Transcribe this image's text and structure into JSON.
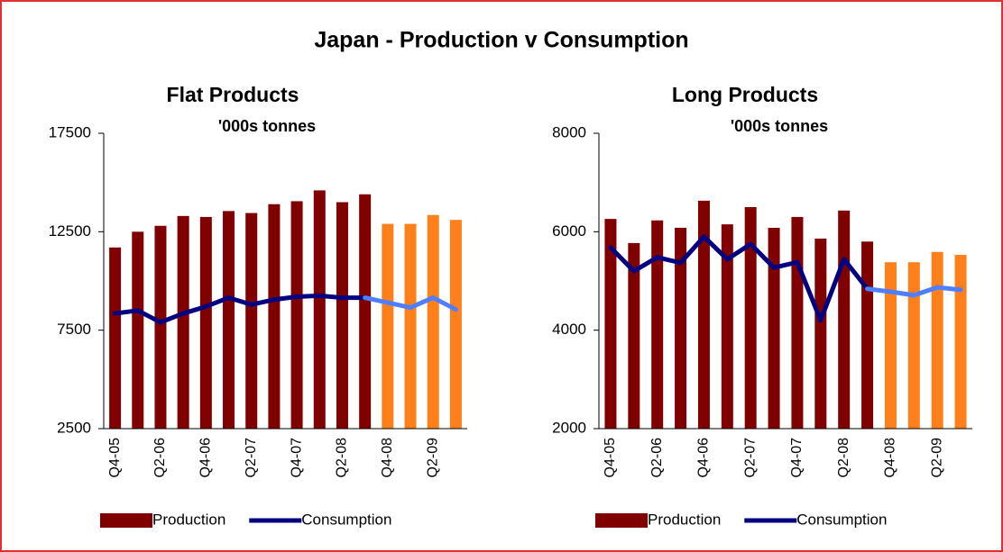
{
  "title": "Japan - Production v Consumption",
  "chart_data": [
    {
      "type": "bar_line",
      "title": "Flat Products",
      "subtitle": "'000s tonnes",
      "categories": [
        "Q4-05",
        null,
        "Q2-06",
        null,
        "Q4-06",
        null,
        "Q2-07",
        null,
        "Q4-07",
        null,
        "Q2-08",
        null,
        "Q4-08",
        null,
        "Q2-09",
        null
      ],
      "ylim": [
        2500,
        17500
      ],
      "yticks": [
        2500,
        7500,
        12500,
        17500
      ],
      "series": [
        {
          "name": "Production",
          "kind": "bar",
          "color": "#800000",
          "colors": [
            "#800000",
            "#800000",
            "#800000",
            "#800000",
            "#800000",
            "#800000",
            "#800000",
            "#800000",
            "#800000",
            "#800000",
            "#800000",
            "#800000",
            "#ff7f1a",
            "#ff7f1a",
            "#ff7f1a",
            "#ff7f1a"
          ],
          "values": [
            11700,
            12500,
            12800,
            13300,
            13250,
            13550,
            13450,
            13900,
            14050,
            14600,
            14000,
            14400,
            12900,
            12900,
            13350,
            13100
          ]
        },
        {
          "name": "Consumption",
          "kind": "line",
          "color": "#000080",
          "colors": [
            "#000080",
            "#000080",
            "#000080",
            "#000080",
            "#000080",
            "#000080",
            "#000080",
            "#000080",
            "#000080",
            "#000080",
            "#000080",
            "#000080",
            "#4f7fff",
            "#4f7fff",
            "#4f7fff",
            "#4f7fff"
          ],
          "values": [
            8350,
            8500,
            7900,
            8350,
            8700,
            9150,
            8800,
            9050,
            9200,
            9250,
            9150,
            9150,
            8900,
            8650,
            9150,
            8550
          ]
        }
      ]
    },
    {
      "type": "bar_line",
      "title": "Long Products",
      "subtitle": "'000s tonnes",
      "categories": [
        "Q4-05",
        null,
        "Q2-06",
        null,
        "Q4-06",
        null,
        "Q2-07",
        null,
        "Q4-07",
        null,
        "Q2-08",
        null,
        "Q4-08",
        null,
        "Q2-09",
        null
      ],
      "ylim": [
        2000,
        8000
      ],
      "yticks": [
        2000,
        4000,
        6000,
        8000
      ],
      "series": [
        {
          "name": "Production",
          "kind": "bar",
          "color": "#800000",
          "colors": [
            "#800000",
            "#800000",
            "#800000",
            "#800000",
            "#800000",
            "#800000",
            "#800000",
            "#800000",
            "#800000",
            "#800000",
            "#800000",
            "#800000",
            "#ff7f1a",
            "#ff7f1a",
            "#ff7f1a",
            "#ff7f1a"
          ],
          "values": [
            6260,
            5770,
            6230,
            6080,
            6630,
            6150,
            6500,
            6080,
            6300,
            5860,
            6430,
            5800,
            5380,
            5380,
            5590,
            5530
          ]
        },
        {
          "name": "Consumption",
          "kind": "line",
          "color": "#000080",
          "colors": [
            "#000080",
            "#000080",
            "#000080",
            "#000080",
            "#000080",
            "#000080",
            "#000080",
            "#000080",
            "#000080",
            "#000080",
            "#000080",
            "#000080",
            "#4f7fff",
            "#4f7fff",
            "#4f7fff",
            "#4f7fff"
          ],
          "values": [
            5680,
            5200,
            5480,
            5370,
            5900,
            5440,
            5750,
            5270,
            5380,
            4200,
            5440,
            4840,
            4780,
            4710,
            4870,
            4820
          ]
        }
      ]
    }
  ]
}
